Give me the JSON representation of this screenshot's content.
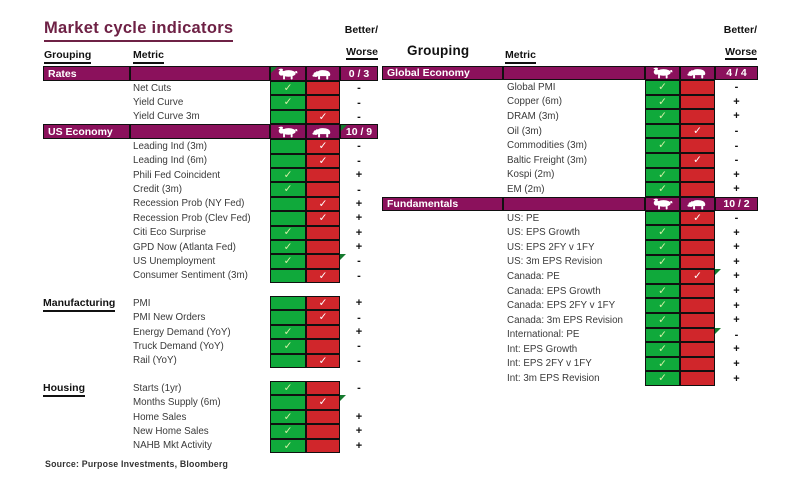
{
  "title": "Market cycle indicators",
  "better_worse": {
    "line1": "Better/",
    "line2": "Worse"
  },
  "column_headers": {
    "grouping": "Grouping",
    "metric": "Metric"
  },
  "source": "Source: Purpose Investments, Bloomberg",
  "check_glyph": "✓",
  "icons": {
    "bull": "bull-icon",
    "bear": "bear-icon"
  },
  "colors": {
    "maroon": "#8B115C",
    "title": "#6E2145",
    "green": "#10A93B",
    "red": "#D0262B",
    "check_on_green": "#D4F0A6",
    "check_on_red": "#FFFFFF",
    "marker": "#157A2E"
  },
  "chart_data": {
    "type": "table",
    "title": "Market cycle indicators",
    "legend": "Each metric is flagged bullish (green check) or bearish (red check); group headers show count Better / Worse",
    "tables": [
      {
        "side": "left",
        "sections": [
          {
            "kind": "bar",
            "label": "Rates",
            "score": "0 / 3",
            "marker_bull": true,
            "rows": [
              {
                "metric": "Net Cuts",
                "check": "bull",
                "worse": "-"
              },
              {
                "metric": "Yield Curve",
                "check": "bull",
                "worse": "-"
              },
              {
                "metric": "Yield Curve 3m",
                "check": "bear",
                "worse": "-"
              }
            ]
          },
          {
            "kind": "bar",
            "label": "US Economy",
            "score": "10 / 9",
            "marker_score": true,
            "rows": [
              {
                "metric": "Leading Ind (3m)",
                "check": "bear",
                "worse": "-"
              },
              {
                "metric": "Leading Ind (6m)",
                "check": "bear",
                "worse": "-"
              },
              {
                "metric": "Phili Fed Coincident",
                "check": "bull",
                "worse": "+"
              },
              {
                "metric": "Credit (3m)",
                "check": "bull",
                "worse": "-"
              },
              {
                "metric": "Recession Prob (NY Fed)",
                "check": "bear",
                "worse": "+"
              },
              {
                "metric": "Recession Prob (Clev Fed)",
                "check": "bear",
                "worse": "+"
              },
              {
                "metric": "Citi Eco Surprise",
                "check": "bull",
                "worse": "+"
              },
              {
                "metric": "GPD Now (Atlanta Fed)",
                "check": "bull",
                "worse": "+"
              },
              {
                "metric": "US Unemployment",
                "check": "bull",
                "worse": "-",
                "marker": true
              },
              {
                "metric": "Consumer Sentiment (3m)",
                "check": "bear",
                "worse": "-"
              }
            ]
          },
          {
            "kind": "label",
            "label": "Manufacturing",
            "rows": [
              {
                "metric": "PMI",
                "check": "bear",
                "worse": "+"
              },
              {
                "metric": "PMI New Orders",
                "check": "bear",
                "worse": "-"
              },
              {
                "metric": "Energy Demand (YoY)",
                "check": "bull",
                "worse": "+"
              },
              {
                "metric": "Truck Demand (YoY)",
                "check": "bull",
                "worse": "-"
              },
              {
                "metric": "Rail (YoY)",
                "check": "bear",
                "worse": "-"
              }
            ]
          },
          {
            "kind": "label",
            "label": "Housing",
            "rows": [
              {
                "metric": "Starts (1yr)",
                "check": "bull",
                "worse": "-"
              },
              {
                "metric": "Months Supply (6m)",
                "check": "bear",
                "worse": "",
                "marker": true
              },
              {
                "metric": "Home Sales",
                "check": "bull",
                "worse": "+"
              },
              {
                "metric": "New Home Sales",
                "check": "bull",
                "worse": "+"
              },
              {
                "metric": "NAHB Mkt Activity",
                "check": "bull",
                "worse": "+"
              }
            ]
          }
        ]
      },
      {
        "side": "right",
        "sections": [
          {
            "kind": "bar",
            "label": "Global Economy",
            "score": "4 / 4",
            "rows": [
              {
                "metric": "Global PMI",
                "check": "bull",
                "worse": "-"
              },
              {
                "metric": "Copper (6m)",
                "check": "bull",
                "worse": "+"
              },
              {
                "metric": "DRAM (3m)",
                "check": "bull",
                "worse": "+"
              },
              {
                "metric": "Oil (3m)",
                "check": "bear",
                "worse": "-"
              },
              {
                "metric": "Commodities (3m)",
                "check": "bull",
                "worse": "-"
              },
              {
                "metric": "Baltic Freight (3m)",
                "check": "bear",
                "worse": "-"
              },
              {
                "metric": "Kospi (2m)",
                "check": "bull",
                "worse": "+"
              },
              {
                "metric": "EM (2m)",
                "check": "bull",
                "worse": "+"
              }
            ]
          },
          {
            "kind": "bar",
            "label": "Fundamentals",
            "score": "10 / 2",
            "rows": [
              {
                "metric": "US: PE",
                "check": "bear",
                "worse": "-"
              },
              {
                "metric": "US: EPS Growth",
                "check": "bull",
                "worse": "+"
              },
              {
                "metric": "US: EPS 2FY v 1FY",
                "check": "bull",
                "worse": "+"
              },
              {
                "metric": "US: 3m EPS Revision",
                "check": "bull",
                "worse": "+"
              },
              {
                "metric": "Canada: PE",
                "check": "bear",
                "worse": "+",
                "marker": true
              },
              {
                "metric": "Canada: EPS Growth",
                "check": "bull",
                "worse": "+"
              },
              {
                "metric": "Canada: EPS 2FY v 1FY",
                "check": "bull",
                "worse": "+"
              },
              {
                "metric": "Canada: 3m EPS Revision",
                "check": "bull",
                "worse": "+"
              },
              {
                "metric": "International: PE",
                "check": "bull",
                "worse": "-",
                "marker": true
              },
              {
                "metric": "Int: EPS Growth",
                "check": "bull",
                "worse": "+"
              },
              {
                "metric": "Int: EPS 2FY v 1FY",
                "check": "bull",
                "worse": "+"
              },
              {
                "metric": "Int: 3m EPS Revision",
                "check": "bull",
                "worse": "+"
              }
            ]
          }
        ]
      }
    ]
  }
}
